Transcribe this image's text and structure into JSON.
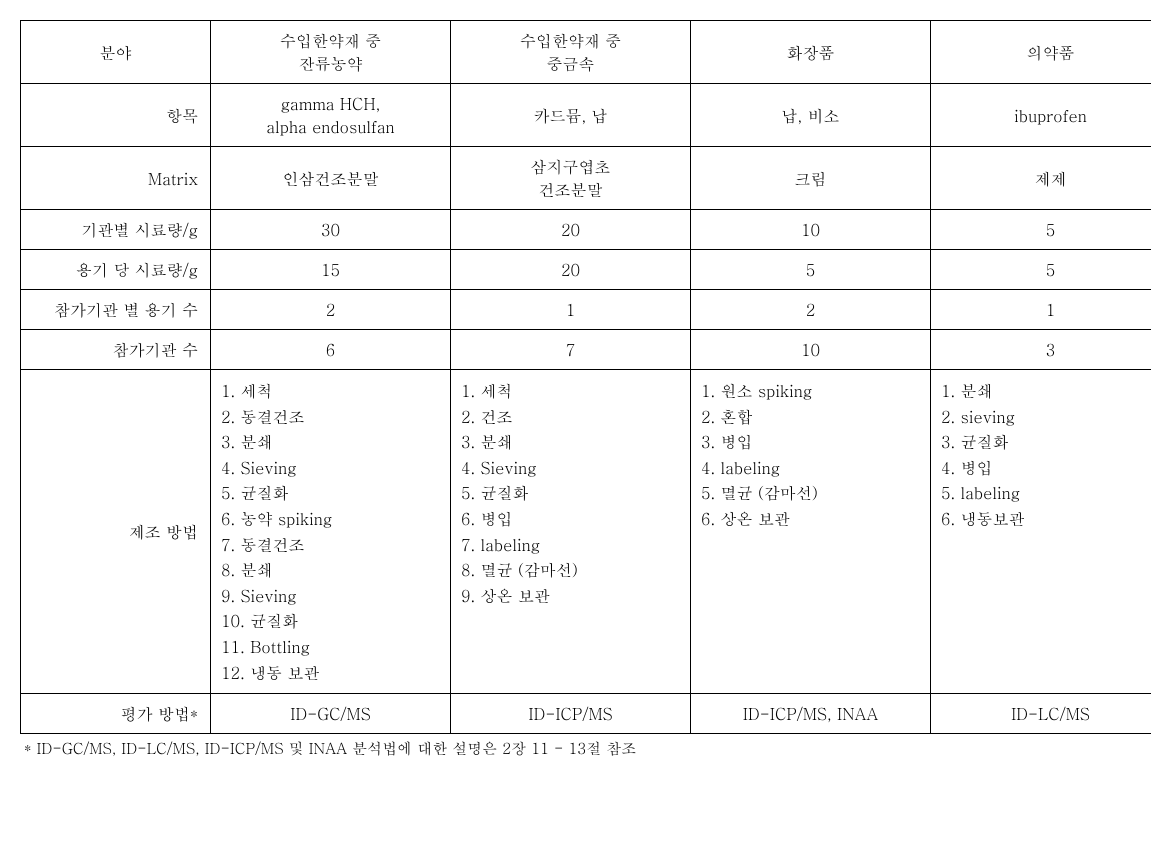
{
  "colors": {
    "text": "#000000",
    "background": "#ffffff",
    "border": "#000000"
  },
  "headers": {
    "category": "분야",
    "col1": "수입한약재 중\n잔류농약",
    "col2": "수입한약재 중\n중금속",
    "col3": "화장품",
    "col4": "의약품"
  },
  "rows": {
    "item": {
      "label": "항목",
      "col1": "gamma HCH,\nalpha endosulfan",
      "col2": "카드뮴, 납",
      "col3": "납, 비소",
      "col4": "ibuprofen"
    },
    "matrix": {
      "label": "Matrix",
      "col1": "인삼건조분말",
      "col2": "삼지구엽초\n건조분말",
      "col3": "크림",
      "col4": "제제"
    },
    "sampleByOrg": {
      "label": "기관별 시료량/g",
      "col1": "30",
      "col2": "20",
      "col3": "10",
      "col4": "5"
    },
    "samplePerContainer": {
      "label": "용기 당 시료량/g",
      "col1": "15",
      "col2": "20",
      "col3": "5",
      "col4": "5"
    },
    "containersPerOrg": {
      "label": "참가기관 별 용기 수",
      "col1": "2",
      "col2": "1",
      "col3": "2",
      "col4": "1"
    },
    "numOrgs": {
      "label": "참가기관 수",
      "col1": "6",
      "col2": "7",
      "col3": "10",
      "col4": "3"
    },
    "method": {
      "label": "제조 방법",
      "col1": [
        "1. 세척",
        "2. 동결건조",
        "3. 분쇄",
        "4. Sieving",
        "5. 균질화",
        "6. 농약 spiking",
        "7. 동결건조",
        "8. 분쇄",
        "9. Sieving",
        "10. 균질화",
        "11. Bottling",
        "12. 냉동 보관"
      ],
      "col2": [
        "1. 세척",
        "2. 건조",
        "3. 분쇄",
        "4. Sieving",
        "5. 균질화",
        "6. 병입",
        "7. labeling",
        "8. 멸균 (감마선)",
        "9. 상온 보관"
      ],
      "col3": [
        "1. 원소 spiking",
        "2. 혼합",
        "3. 병입",
        "4. labeling",
        "5. 멸균 (감마선)",
        "6. 상온 보관"
      ],
      "col4": [
        "1. 분쇄",
        "2. sieving",
        "3. 균질화",
        "4. 병입",
        "5. labeling",
        "6. 냉동보관"
      ]
    },
    "evaluation": {
      "label": "평가 방법*",
      "col1": "ID-GC/MS",
      "col2": "ID-ICP/MS",
      "col3": "ID-ICP/MS, INAA",
      "col4": "ID-LC/MS"
    }
  },
  "footnote": "* ID-GC/MS, ID-LC/MS, ID-ICP/MS 및 INAA 분석법에 대한 설명은 2장 11 - 13절 참조"
}
